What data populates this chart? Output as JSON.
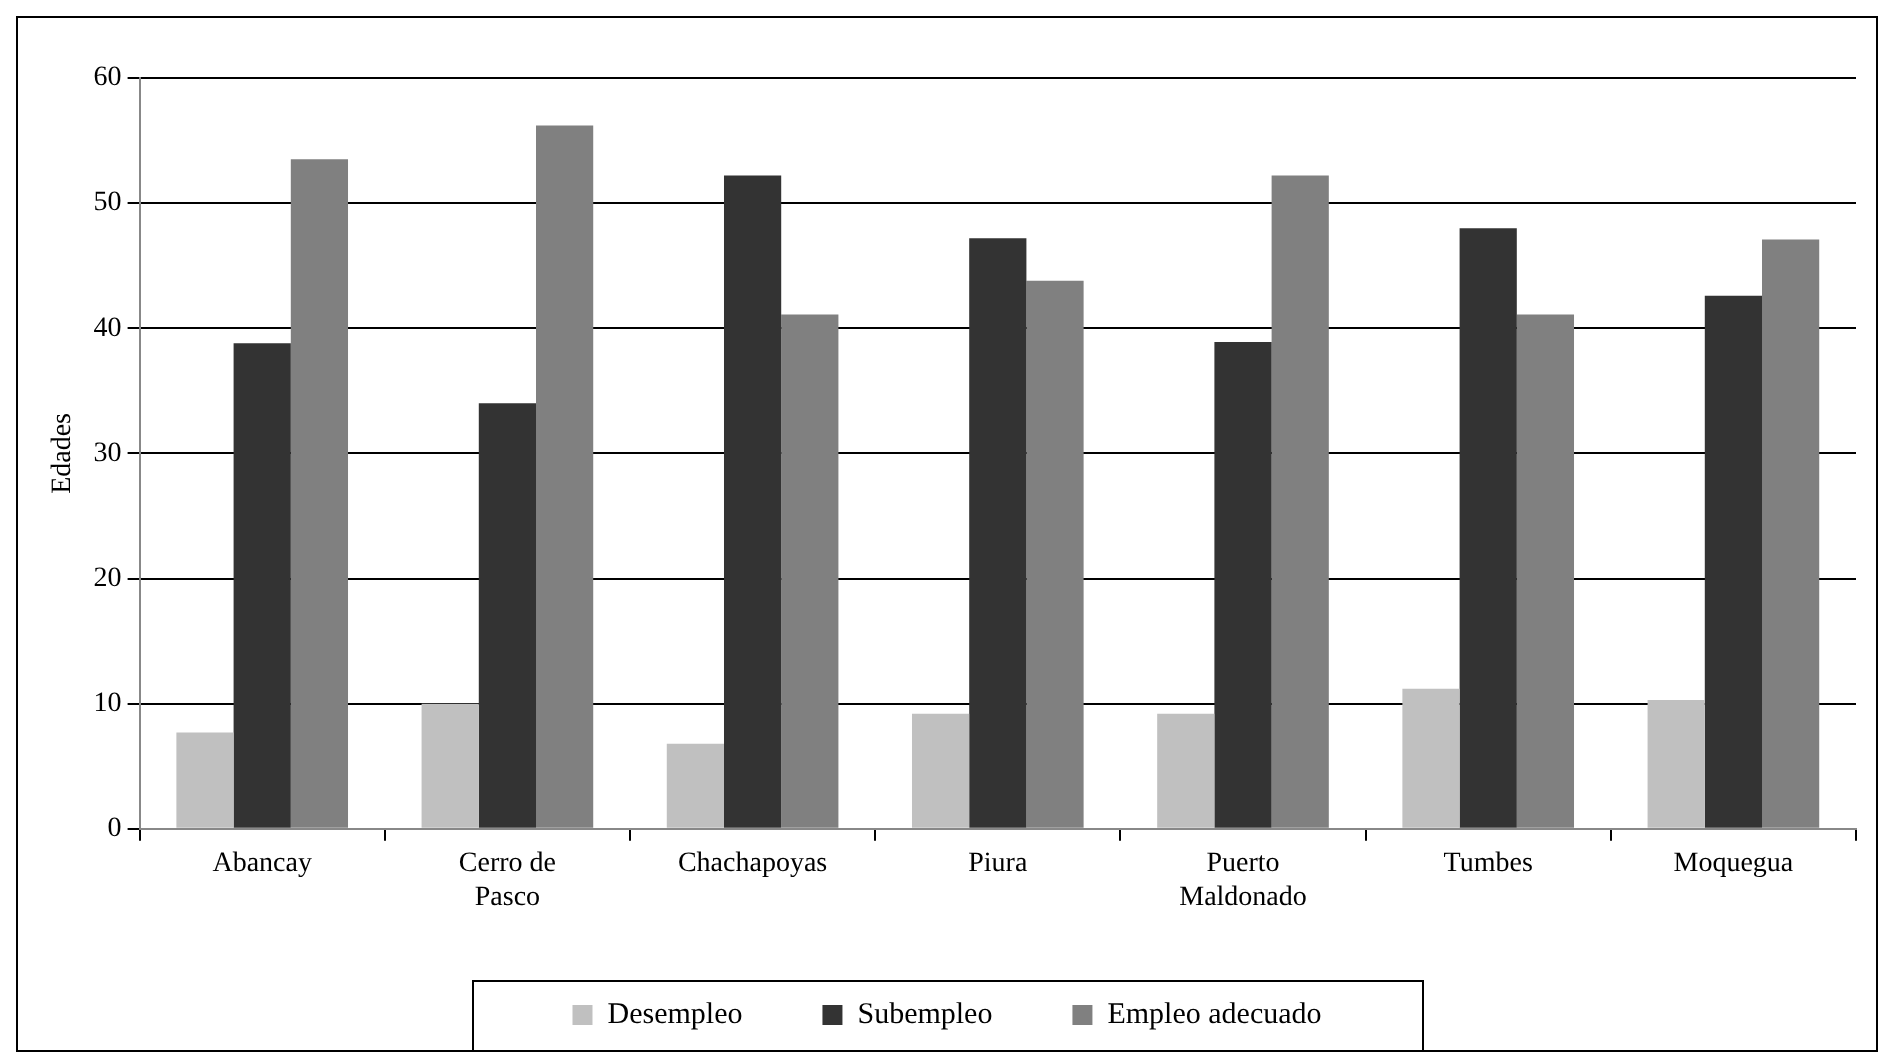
{
  "chart_data": {
    "type": "bar",
    "ylabel": "Edades",
    "categories": [
      "Abancay",
      "Cerro de Pasco",
      "Chachapoyas",
      "Piura",
      "Puerto Maldonado",
      "Tumbes",
      "Moquegua"
    ],
    "series": [
      {
        "name": "Desempleo",
        "color": "#c0c0c0",
        "values": [
          7.7,
          10,
          6.8,
          9.2,
          9.2,
          11.2,
          10.3
        ]
      },
      {
        "name": "Subempleo",
        "color": "#333333",
        "values": [
          38.8,
          34,
          52.2,
          47.2,
          38.9,
          48,
          42.6
        ]
      },
      {
        "name": "Empleo adecuado",
        "color": "#808080",
        "values": [
          53.5,
          56.2,
          41.1,
          43.8,
          52.2,
          41.1,
          47.1
        ]
      }
    ],
    "ylim": [
      0,
      60
    ],
    "yticks": [
      0,
      10,
      20,
      30,
      40,
      50,
      60
    ],
    "grid": "y",
    "legend": "bottom"
  }
}
